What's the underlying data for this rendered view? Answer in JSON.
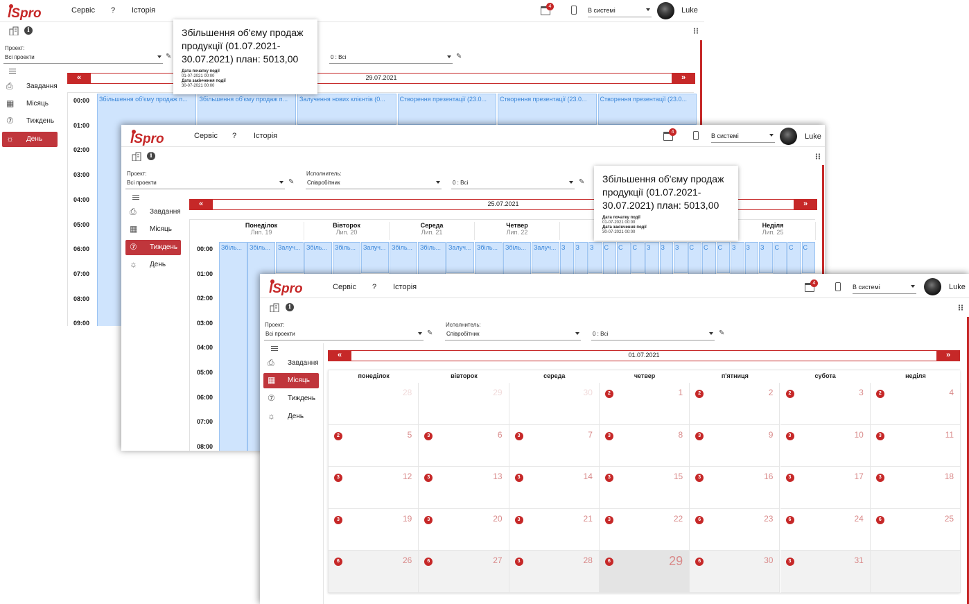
{
  "app": {
    "logo_text": "ISpro",
    "menu": [
      "Сервіс",
      "?",
      "Історія"
    ],
    "notifications_count": "4",
    "status": "В системі",
    "user": "Luke"
  },
  "filters": {
    "project_label": "Проект:",
    "project_value": "Всі проекти",
    "executor_label": "Исполнитель:",
    "executor_value": "Співробітник",
    "third_value": "0 : Всі"
  },
  "nav": {
    "tasks": "Завдання",
    "month": "Місяць",
    "week": "Тиждень",
    "day": "День"
  },
  "tooltip": {
    "title": "Збільшення об'єму продаж продукції (01.07.2021-30.07.2021) план: 5013,00",
    "start_label": "Дата початку події",
    "start_value": "01-07-2021 00:00",
    "end_label": "Дата закінчення події",
    "end_value": "30-07-2021 00:00"
  },
  "day_view": {
    "date": "29.07.2021",
    "times": [
      "00:00",
      "01:00",
      "02:00",
      "03:00",
      "04:00",
      "05:00",
      "06:00",
      "07:00",
      "08:00",
      "09:00"
    ],
    "events": [
      "Збільшення об'єму продаж п...",
      "Збільшення об'єму продаж п...",
      "Залучення нових клієнтів (0...",
      "Створення презентації (23.0...",
      "Створення презентації (23.0...",
      "Створення презентації (23.0..."
    ]
  },
  "week_view": {
    "date": "25.07.2021",
    "times": [
      "00:00",
      "01:00",
      "02:00",
      "03:00",
      "04:00",
      "05:00",
      "06:00",
      "07:00",
      "08:00"
    ],
    "days": [
      {
        "name": "Понеділок",
        "sub": "Лип. 19"
      },
      {
        "name": "Вівторок",
        "sub": "Лип. 20"
      },
      {
        "name": "Середа",
        "sub": "Лип. 21"
      },
      {
        "name": "Четвер",
        "sub": "Лип. 22"
      },
      {
        "name": "П'",
        "sub": "Л"
      },
      {
        "name": "",
        "sub": ""
      },
      {
        "name": "Неділя",
        "sub": "Лип. 25"
      }
    ],
    "day_events": [
      "Збіль...",
      "Збіль...",
      "Залуч..."
    ],
    "narrow_events": [
      "З",
      "З",
      "З",
      "С",
      "С",
      "С"
    ]
  },
  "month_view": {
    "date": "01.07.2021",
    "weekdays": [
      "понеділок",
      "вівторок",
      "середа",
      "четвер",
      "п'ятниця",
      "субота",
      "неділя"
    ],
    "weeks": [
      [
        {
          "d": "28",
          "b": ""
        },
        {
          "d": "29",
          "b": ""
        },
        {
          "d": "30",
          "b": ""
        },
        {
          "d": "1",
          "b": "2"
        },
        {
          "d": "2",
          "b": "2"
        },
        {
          "d": "3",
          "b": "2"
        },
        {
          "d": "4",
          "b": "2"
        }
      ],
      [
        {
          "d": "5",
          "b": "2"
        },
        {
          "d": "6",
          "b": "3"
        },
        {
          "d": "7",
          "b": "3"
        },
        {
          "d": "8",
          "b": "3"
        },
        {
          "d": "9",
          "b": "3"
        },
        {
          "d": "10",
          "b": "3"
        },
        {
          "d": "11",
          "b": "3"
        }
      ],
      [
        {
          "d": "12",
          "b": "3"
        },
        {
          "d": "13",
          "b": "3"
        },
        {
          "d": "14",
          "b": "3"
        },
        {
          "d": "15",
          "b": "3"
        },
        {
          "d": "16",
          "b": "3"
        },
        {
          "d": "17",
          "b": "3"
        },
        {
          "d": "18",
          "b": "3"
        }
      ],
      [
        {
          "d": "19",
          "b": "3"
        },
        {
          "d": "20",
          "b": "3"
        },
        {
          "d": "21",
          "b": "3"
        },
        {
          "d": "22",
          "b": "3"
        },
        {
          "d": "23",
          "b": "6"
        },
        {
          "d": "24",
          "b": "6"
        },
        {
          "d": "25",
          "b": "6"
        }
      ],
      [
        {
          "d": "26",
          "b": "6"
        },
        {
          "d": "27",
          "b": "6"
        },
        {
          "d": "28",
          "b": "3"
        },
        {
          "d": "29",
          "b": "6"
        },
        {
          "d": "30",
          "b": "6"
        },
        {
          "d": "31",
          "b": "3"
        },
        {
          "d": "",
          "b": ""
        }
      ]
    ]
  },
  "colors": {
    "accent": "#c62828",
    "event_bg": "#cfe4fd",
    "event_text": "#3a86d8"
  }
}
